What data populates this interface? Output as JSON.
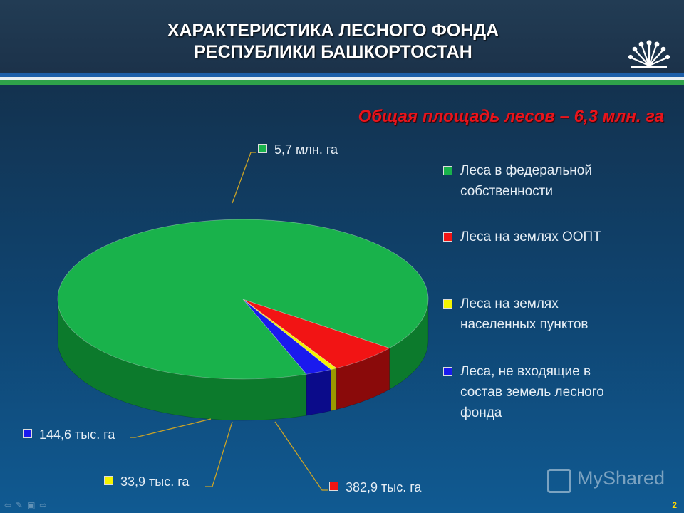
{
  "header": {
    "title_line1": "ХАРАКТЕРИСТИКА ЛЕСНОГО ФОНДА",
    "title_line2": "РЕСПУБЛИКИ БАШКОРТОСТАН",
    "logo_icon": "sun-flower-logo-icon"
  },
  "subtitle": "Общая площадь лесов – 6,3 млн. га",
  "chart_data": {
    "type": "pie",
    "title": "Общая площадь лесов – 6,3 млн. га",
    "series": [
      {
        "name": "Леса в федеральной собственности",
        "value": 5700,
        "label": "5,7 млн. га",
        "color": "#19b24b",
        "side": "#0c7a2c"
      },
      {
        "name": "Леса на землях ООПТ",
        "value": 382.9,
        "label": "382,9 тыс. га",
        "color": "#f21414",
        "side": "#8a0a0a"
      },
      {
        "name": "Леса на землях населенных пунктов",
        "value": 33.9,
        "label": "33,9 тыс. га",
        "color": "#f4f400",
        "side": "#9a9a00"
      },
      {
        "name": "Леса, не входящие в состав земель лесного фонда",
        "value": 144.6,
        "label": "144,6 тыс. га",
        "color": "#1a1aee",
        "side": "#0b0b8a"
      }
    ],
    "legend_position": "right"
  },
  "legend": {
    "items": [
      {
        "text_line1": "Леса в федеральной",
        "text_line2": "собственности",
        "color": "#19b24b"
      },
      {
        "text_line1": "Леса на землях ООПТ",
        "text_line2": "",
        "color": "#f21414"
      },
      {
        "text_line1": "Леса на землях",
        "text_line2": "населенных пунктов",
        "color": "#f4f400"
      },
      {
        "text_line1": "Леса, не входящие в",
        "text_line2": "состав земель лесного",
        "text_line3": "фонда",
        "color": "#1a1aee"
      }
    ]
  },
  "watermark": "MyShared",
  "page_number": "2"
}
